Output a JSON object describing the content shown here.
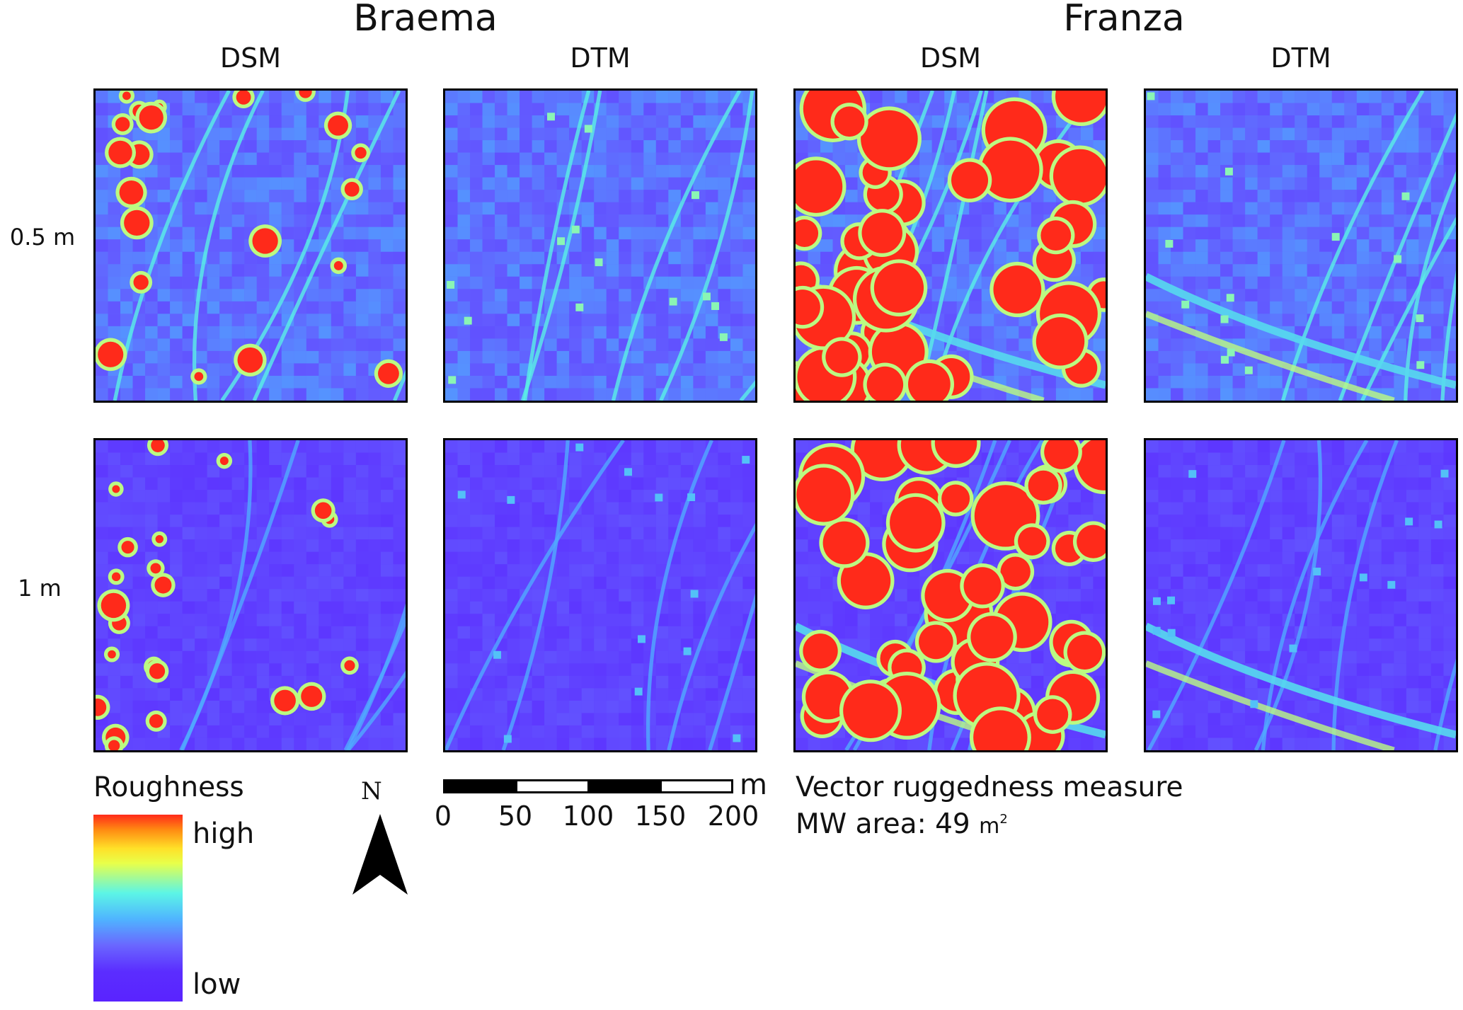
{
  "sites": [
    {
      "name": "Braema"
    },
    {
      "name": "Franza"
    }
  ],
  "columns": [
    "DSM",
    "DTM",
    "DSM",
    "DTM"
  ],
  "rows": [
    "0.5 m",
    "1 m"
  ],
  "legend": {
    "title": "Roughness",
    "high_label": "high",
    "low_label": "low",
    "colors": [
      "#ff2a1a",
      "#ff8a12",
      "#ffe028",
      "#5cf5e6",
      "#4fb4ff",
      "#6a66ff",
      "#5a23ff"
    ]
  },
  "north_arrow": {
    "label": "N"
  },
  "scale_bar": {
    "unit": "m",
    "ticks": [
      "0",
      "50",
      "100",
      "150",
      "200"
    ]
  },
  "info": {
    "method": "Vector ruggedness measure",
    "mw_area_label": "MW area: 49",
    "mw_area_unit": "m",
    "mw_area_exp": "2"
  },
  "panels": [
    {
      "site": "Braema",
      "model": "DSM",
      "resolution": "0.5 m",
      "roughness": "high",
      "colormap": "jet"
    },
    {
      "site": "Braema",
      "model": "DTM",
      "resolution": "0.5 m",
      "roughness": "low",
      "colormap": "jet"
    },
    {
      "site": "Franza",
      "model": "DSM",
      "resolution": "0.5 m",
      "roughness": "high",
      "colormap": "jet"
    },
    {
      "site": "Franza",
      "model": "DTM",
      "resolution": "0.5 m",
      "roughness": "low",
      "colormap": "jet"
    },
    {
      "site": "Braema",
      "model": "DSM",
      "resolution": "1 m",
      "roughness": "high",
      "colormap": "jet"
    },
    {
      "site": "Braema",
      "model": "DTM",
      "resolution": "1 m",
      "roughness": "low",
      "colormap": "jet"
    },
    {
      "site": "Franza",
      "model": "DSM",
      "resolution": "1 m",
      "roughness": "high",
      "colormap": "jet"
    },
    {
      "site": "Franza",
      "model": "DTM",
      "resolution": "1 m",
      "roughness": "low",
      "colormap": "jet"
    }
  ]
}
